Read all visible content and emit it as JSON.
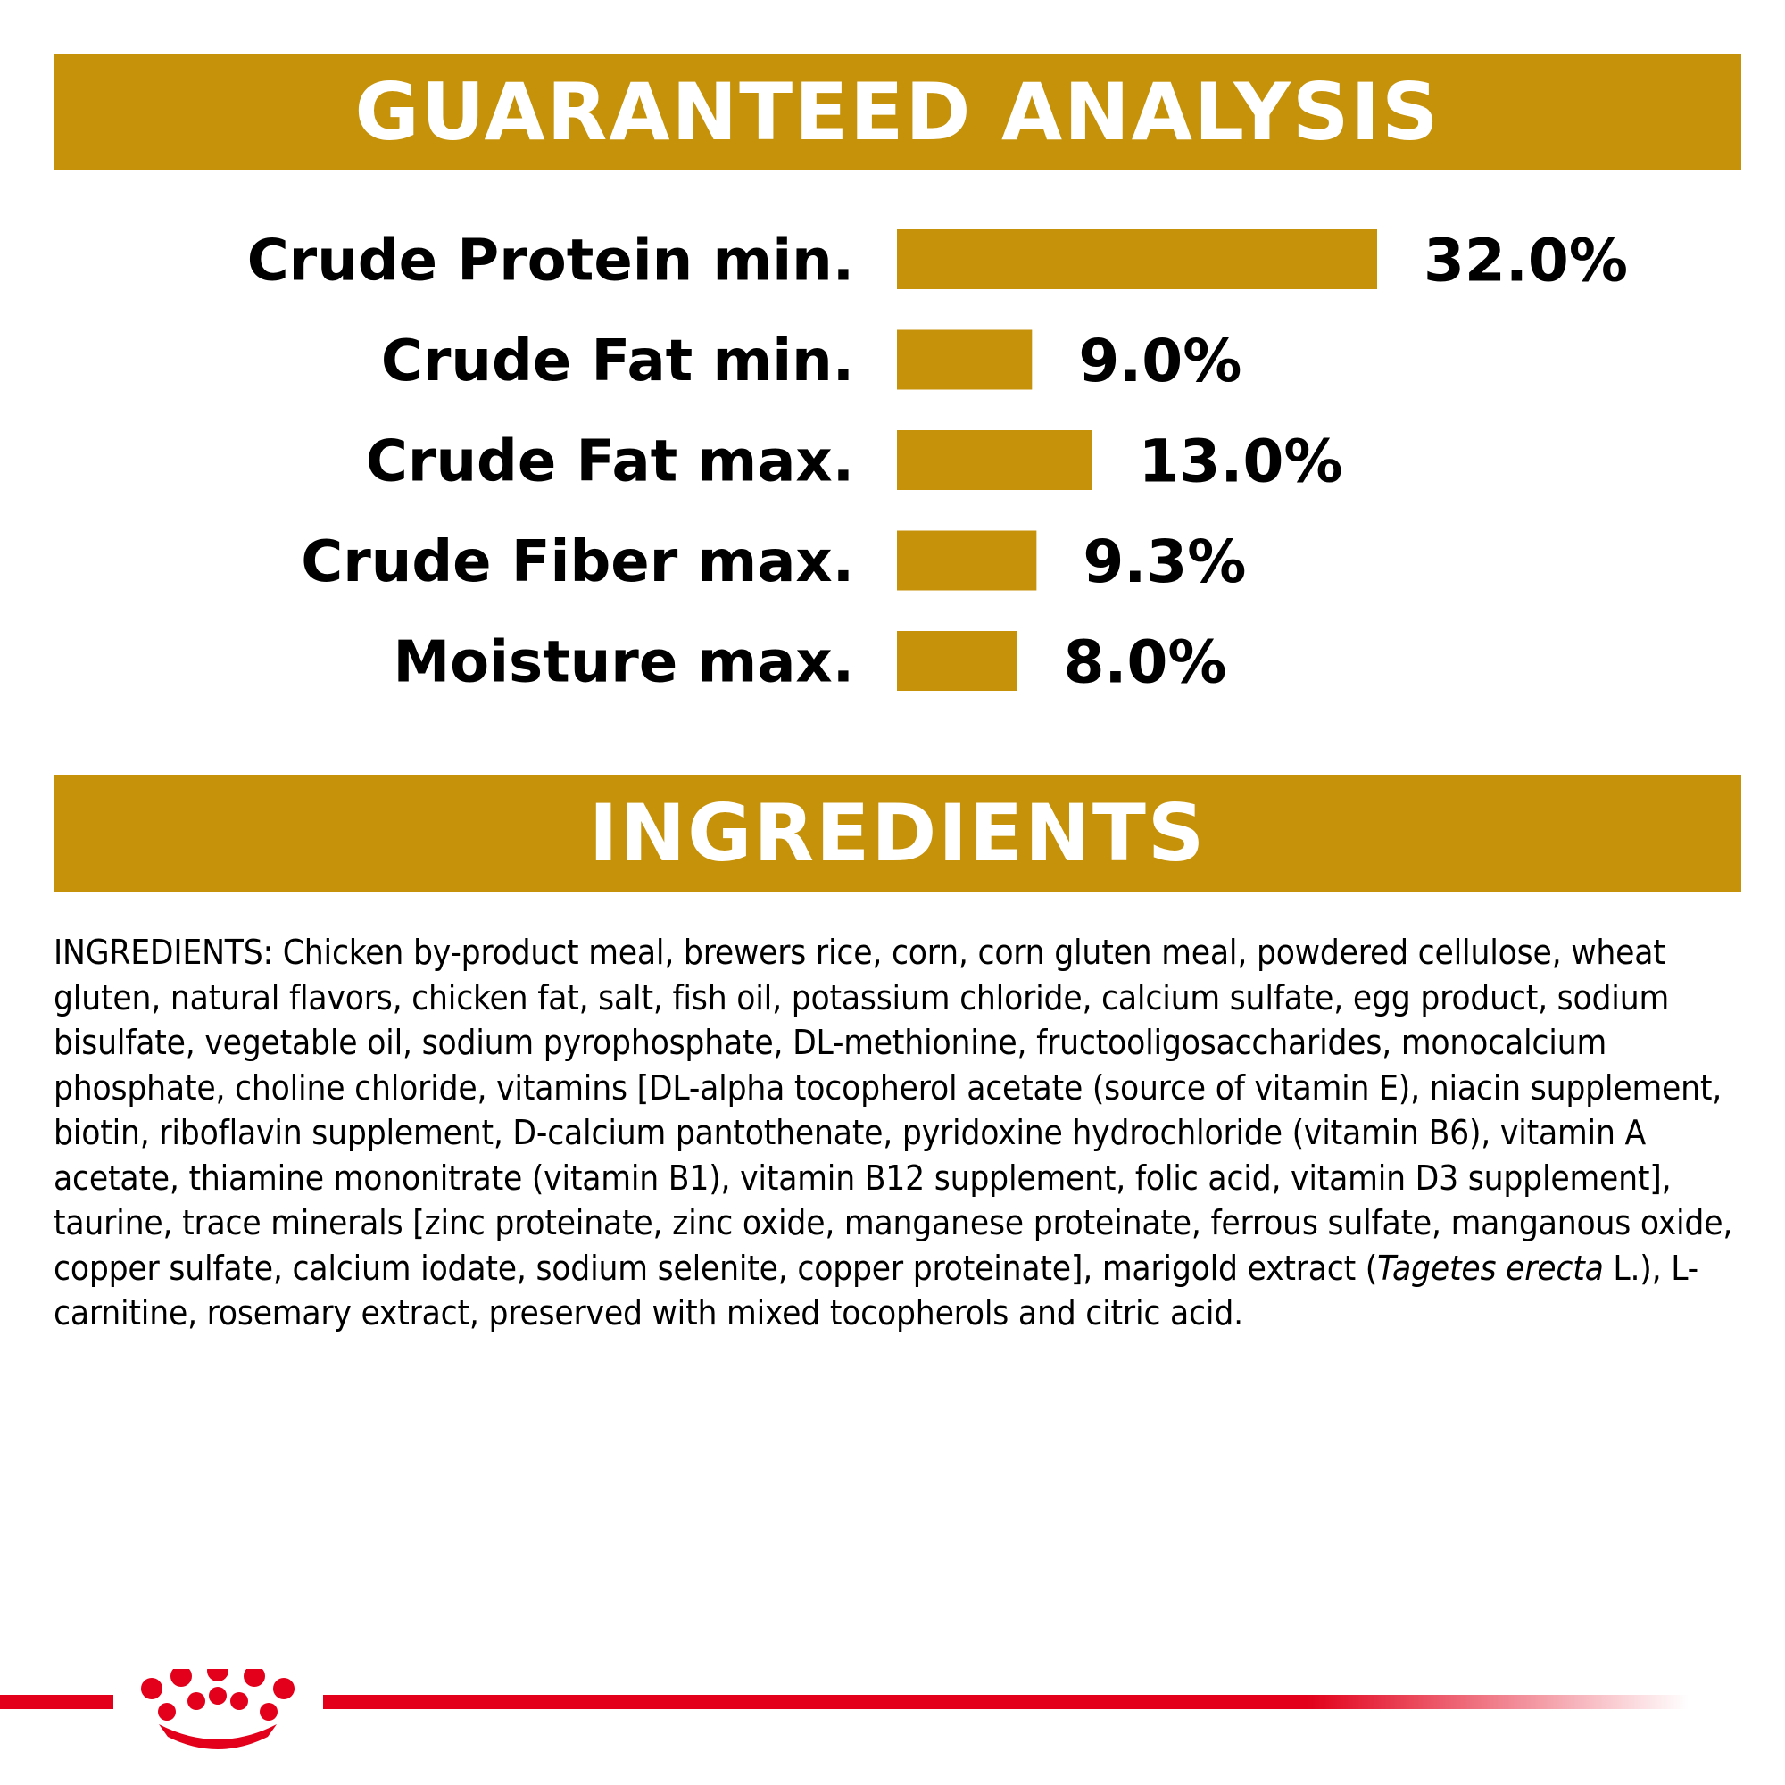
{
  "sections": {
    "analysis_title": "GUARANTEED ANALYSIS",
    "ingredients_title": "INGREDIENTS"
  },
  "chart_data": {
    "type": "bar",
    "orientation": "horizontal",
    "title": "GUARANTEED ANALYSIS",
    "categories": [
      "Crude Protein min.",
      "Crude Fat min.",
      "Crude Fat max.",
      "Crude Fiber max.",
      "Moisture max."
    ],
    "values": [
      32.0,
      9.0,
      13.0,
      9.3,
      8.0
    ],
    "value_labels": [
      "32.0%",
      "9.0%",
      "13.0%",
      "9.3%",
      "8.0%"
    ],
    "xlim": [
      0,
      32.0
    ],
    "grid": false,
    "legend": "none",
    "bar_color": "#c5920a"
  },
  "ingredients": {
    "before_italic": "INGREDIENTS: Chicken by-product meal, brewers rice, corn, corn gluten meal, powdered cellulose, wheat gluten, natural flavors, chicken fat, salt, fish oil, potassium chloride, calcium sulfate, egg product, sodium bisulfate, vegetable oil, sodium pyrophosphate, DL-methionine, fructooligosaccharides, monocalcium phosphate, choline chloride, vitamins [DL-alpha tocopherol acetate (source of vitamin E), niacin supplement, biotin, riboflavin supplement, D-calcium pantothenate, pyridoxine hydrochloride (vitamin B6), vitamin A acetate, thiamine mononitrate (vitamin B1), vitamin B12 supplement, folic acid, vitamin D3 supplement], taurine, trace minerals [zinc proteinate, zinc oxide, manganese proteinate, ferrous sulfate, manganous oxide, copper sulfate, calcium iodate, sodium selenite, copper proteinate], marigold extract (",
    "italic": "Tagetes erecta",
    "after_italic": " L.), L-carnitine, rosemary extract, preserved with mixed tocopherols and citric acid."
  },
  "colors": {
    "accent_gold": "#c5920a",
    "brand_red": "#e2001a",
    "text": "#000000",
    "banner_text": "#ffffff"
  },
  "icons": {
    "brand": "crown-icon"
  }
}
